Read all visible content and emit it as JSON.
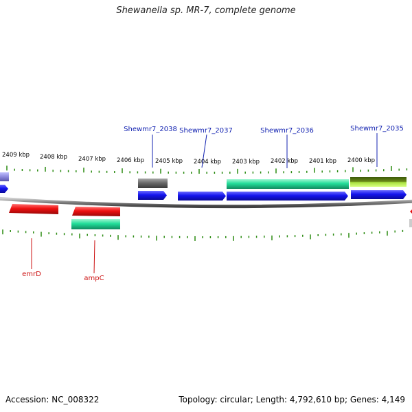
{
  "title": "Shewanella sp. MR-7, complete genome",
  "footer": {
    "accession": "Accession: NC_008322",
    "summary": "Topology: circular; Length: 4,792,610 bp; Genes: 4,149"
  },
  "colors": {
    "cds": "#1414ee",
    "rna": "#ee1111",
    "green": "#22dd99",
    "grey": "#6a6a6a",
    "olive": "#5a7a10",
    "lime": "#b8f040",
    "lilac": "#8c88dd",
    "tick": "#2a8a10",
    "backbone": "#888888",
    "gene_label_top": "#1020b0",
    "gene_label_bottom": "#cc1010"
  },
  "kbp_labels": [
    "2409 kbp",
    "2408 kbp",
    "2407 kbp",
    "2406 kbp",
    "2405 kbp",
    "2404 kbp",
    "2403 kbp",
    "2402 kbp",
    "2401 kbp",
    "2400 kbp"
  ],
  "gene_labels_top": [
    "Shewmr7_2038",
    "Shewmr7_2037",
    "Shewmr7_2036",
    "Shewmr7_2035"
  ],
  "gene_labels_bottom": [
    "emrD",
    "ampC"
  ]
}
